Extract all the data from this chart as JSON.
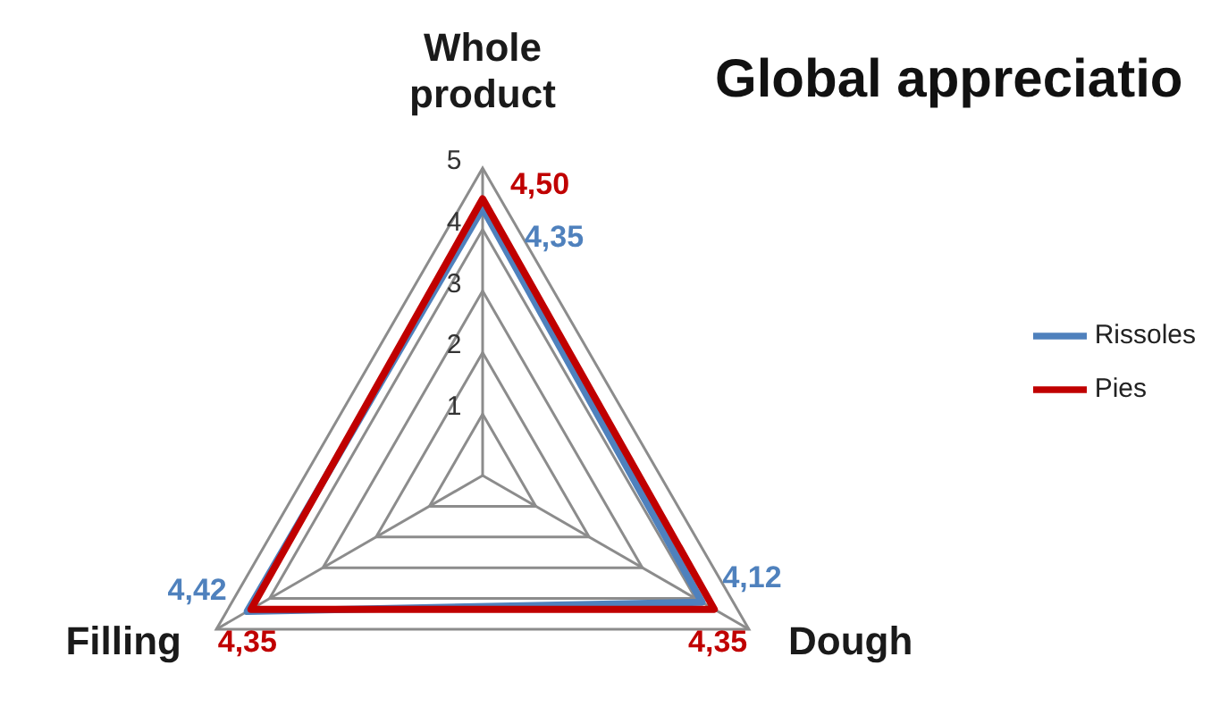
{
  "chart_data": {
    "type": "radar",
    "title": "Global appreciatio",
    "categories": [
      "Whole product",
      "Dough",
      "Filling"
    ],
    "series": [
      {
        "name": "Rissoles",
        "color": "#4f81bd",
        "values": [
          4.35,
          4.12,
          4.42
        ],
        "value_labels": [
          "4,35",
          "4,12",
          "4,42"
        ]
      },
      {
        "name": "Pies",
        "color": "#c00000",
        "values": [
          4.5,
          4.35,
          4.35
        ],
        "value_labels": [
          "4,50",
          "4,35",
          "4,35"
        ]
      }
    ],
    "ylim": [
      0,
      5
    ],
    "yticks": [
      1,
      2,
      3,
      4,
      5
    ],
    "grid": true,
    "legend": "right"
  }
}
